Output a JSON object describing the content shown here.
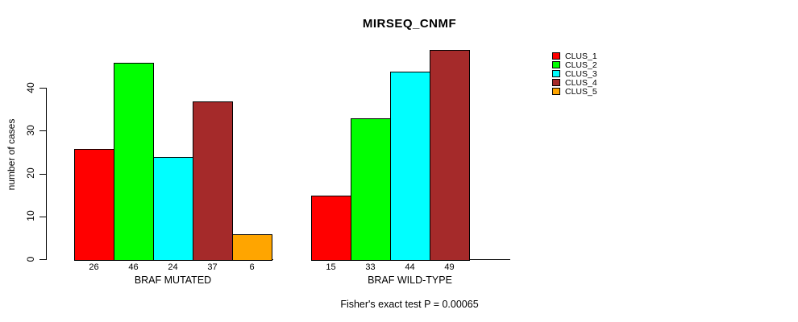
{
  "title": "MIRSEQ_CNMF",
  "chart_data": {
    "type": "bar",
    "title": "MIRSEQ_CNMF",
    "xlabel": "",
    "ylabel": "number of cases",
    "ylim": [
      0,
      49
    ],
    "yticks": [
      0,
      10,
      20,
      30,
      40
    ],
    "grid": false,
    "legend_position": "right-outside",
    "categories": [
      "CLUS_1",
      "CLUS_2",
      "CLUS_3",
      "CLUS_4",
      "CLUS_5"
    ],
    "colors": {
      "CLUS_1": "#FF0000",
      "CLUS_2": "#00FF00",
      "CLUS_3": "#00FFFF",
      "CLUS_4": "#A52A2A",
      "CLUS_5": "#FFA500"
    },
    "groups": [
      {
        "label": "BRAF MUTATED",
        "categories": [
          "CLUS_1",
          "CLUS_2",
          "CLUS_3",
          "CLUS_4",
          "CLUS_5"
        ],
        "values": [
          26,
          46,
          24,
          37,
          6
        ]
      },
      {
        "label": "BRAF WILD-TYPE",
        "categories": [
          "CLUS_1",
          "CLUS_2",
          "CLUS_3",
          "CLUS_4"
        ],
        "values": [
          15,
          33,
          44,
          49
        ]
      }
    ],
    "legend": [
      {
        "label": "CLUS_1",
        "color": "#FF0000"
      },
      {
        "label": "CLUS_2",
        "color": "#00FF00"
      },
      {
        "label": "CLUS_3",
        "color": "#00FFFF"
      },
      {
        "label": "CLUS_4",
        "color": "#A52A2A"
      },
      {
        "label": "CLUS_5",
        "color": "#FFA500"
      }
    ],
    "annotation": "Fisher's exact test P = 0.00065"
  }
}
